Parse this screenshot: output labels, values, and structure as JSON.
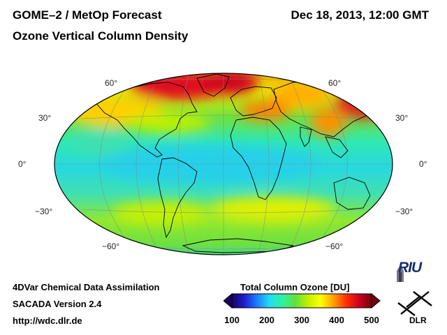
{
  "header": {
    "title": "GOME–2 / MetOp Forecast",
    "subtitle": "Ozone Vertical Column Density",
    "datetime": "Dec 18, 2013, 12:00 GMT"
  },
  "footer": {
    "line1": "4DVar Chemical Data Assimilation",
    "line2": "SACADA Version 2.4",
    "line3": "http://wdc.dlr.de"
  },
  "colorbar": {
    "title": "Total Column Ozone [DU]",
    "min": 100,
    "max": 500,
    "ticks": [
      "100",
      "200",
      "300",
      "400",
      "500"
    ],
    "colors": [
      "#1a0060",
      "#2020d0",
      "#2080ff",
      "#20e0f0",
      "#30f0a0",
      "#60e040",
      "#c0f000",
      "#ffff00",
      "#ffa000",
      "#ff3000",
      "#d00020",
      "#700010"
    ]
  },
  "map": {
    "projection": "Hammer-Aitoff",
    "latitude_labels": [
      "60°",
      "30°",
      "0°",
      "−30°",
      "−60°"
    ],
    "ocean_color": "#4ad8c8"
  },
  "logos": {
    "riu": "RIU",
    "dlr": "DLR"
  }
}
